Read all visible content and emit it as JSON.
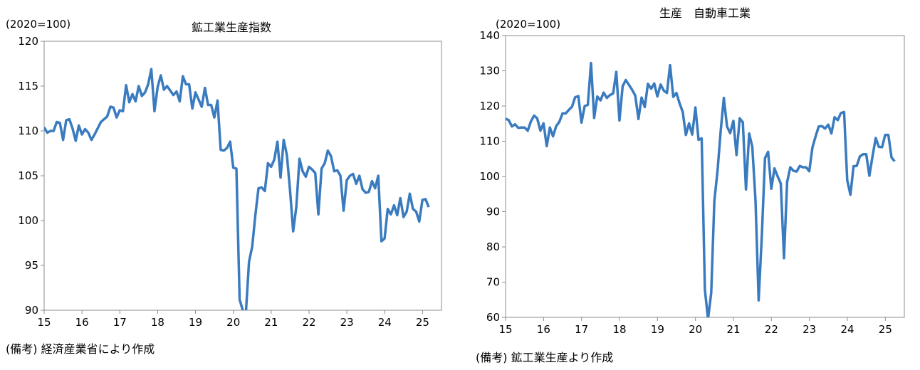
{
  "chart_data": [
    {
      "type": "line",
      "title": "鉱工業生産指数",
      "unit_label": "(2020=100)",
      "note": "(備考) 経済産業省により作成",
      "ylim": [
        90,
        120
      ],
      "yticks": [
        90,
        95,
        100,
        105,
        110,
        115,
        120
      ],
      "xlim": [
        15,
        25.5
      ],
      "xticks": [
        15,
        16,
        17,
        18,
        19,
        20,
        21,
        22,
        23,
        24,
        25
      ],
      "xtick_labels": [
        "15",
        "16",
        "17",
        "18",
        "19",
        "20",
        "21",
        "22",
        "23",
        "24",
        "25"
      ],
      "grid": false,
      "legend": "none",
      "color": "#3a7bbf",
      "series": [
        {
          "x_start": 15.0,
          "x_step": 0.0833,
          "values": [
            110.4,
            109.8,
            110.0,
            110.0,
            111.0,
            110.9,
            109.0,
            111.2,
            111.3,
            110.3,
            108.9,
            110.6,
            109.6,
            110.2,
            109.8,
            109.0,
            109.6,
            110.3,
            111.0,
            111.3,
            111.6,
            112.7,
            112.6,
            111.5,
            112.3,
            112.2,
            115.1,
            113.2,
            114.1,
            113.3,
            115.0,
            113.9,
            114.3,
            115.2,
            116.9,
            112.2,
            114.9,
            116.2,
            114.6,
            115.0,
            114.5,
            114.0,
            114.4,
            113.3,
            116.1,
            115.2,
            115.2,
            112.5,
            114.3,
            113.5,
            112.7,
            114.8,
            112.9,
            112.9,
            111.5,
            113.4,
            107.9,
            107.8,
            108.1,
            108.8,
            105.9,
            105.8,
            91.2,
            90.0,
            89.7,
            95.4,
            97.1,
            100.6,
            103.6,
            103.7,
            103.3,
            106.4,
            106.0,
            106.8,
            108.8,
            104.8,
            109.0,
            107.3,
            103.4,
            98.8,
            101.5,
            106.9,
            105.5,
            104.9,
            106.0,
            105.7,
            105.3,
            100.7,
            105.8,
            106.4,
            107.8,
            107.2,
            105.5,
            105.6,
            105.0,
            101.1,
            104.5,
            105.0,
            105.2,
            104.1,
            105.0,
            103.5,
            103.1,
            103.2,
            104.4,
            103.6,
            105.0,
            97.7,
            98.0,
            101.3,
            100.7,
            101.7,
            100.6,
            102.5,
            100.4,
            101.0,
            103.0,
            101.3,
            101.0,
            99.9,
            102.3,
            102.4,
            101.5
          ]
        }
      ]
    },
    {
      "type": "line",
      "title": "生産　自動車工業",
      "unit_label": "(2020=100)",
      "note": "(備考) 鉱工業生産より作成",
      "ylim": [
        60,
        140
      ],
      "yticks": [
        60,
        70,
        80,
        90,
        100,
        110,
        120,
        130,
        140
      ],
      "xlim": [
        15,
        25.5
      ],
      "xticks": [
        15,
        16,
        17,
        18,
        19,
        20,
        21,
        22,
        23,
        24,
        25
      ],
      "xtick_labels": [
        "15",
        "16",
        "17",
        "18",
        "19",
        "20",
        "21",
        "22",
        "23",
        "24",
        "25"
      ],
      "grid": false,
      "legend": "none",
      "color": "#3a7bbf",
      "series": [
        {
          "x_start": 15.0,
          "x_step": 0.0833,
          "values": [
            116.4,
            116.0,
            114.2,
            114.8,
            113.8,
            113.9,
            113.9,
            113.0,
            115.6,
            117.3,
            116.5,
            113.0,
            115.1,
            108.6,
            113.9,
            111.4,
            114.3,
            115.5,
            117.9,
            117.9,
            118.9,
            119.8,
            122.5,
            122.8,
            115.3,
            120.0,
            120.3,
            132.2,
            116.6,
            122.7,
            121.6,
            123.8,
            122.3,
            123.1,
            123.6,
            129.7,
            115.9,
            125.6,
            127.4,
            126.0,
            124.6,
            123.0,
            116.3,
            122.4,
            119.7,
            126.3,
            124.9,
            126.4,
            122.7,
            126.1,
            124.4,
            123.7,
            131.6,
            122.6,
            123.7,
            120.8,
            118.3,
            111.8,
            115.1,
            111.9,
            119.6,
            110.4,
            110.8,
            67.9,
            59.5,
            67.0,
            93.0,
            101.7,
            112.9,
            122.3,
            114.2,
            112.3,
            115.8,
            106.1,
            116.5,
            115.4,
            96.3,
            112.2,
            108.4,
            93.2,
            64.8,
            83.3,
            105.2,
            107.0,
            96.5,
            102.3,
            100.0,
            98.0,
            76.8,
            98.4,
            102.6,
            101.6,
            101.4,
            103.0,
            102.6,
            102.6,
            101.5,
            108.2,
            111.4,
            114.2,
            114.3,
            113.6,
            114.7,
            112.2,
            116.8,
            116.0,
            118.0,
            118.3,
            98.9,
            94.8,
            102.9,
            103.0,
            105.7,
            106.3,
            106.3,
            100.2,
            105.7,
            110.9,
            108.4,
            108.3,
            111.8,
            111.8,
            105.4,
            104.3
          ]
        }
      ]
    }
  ]
}
